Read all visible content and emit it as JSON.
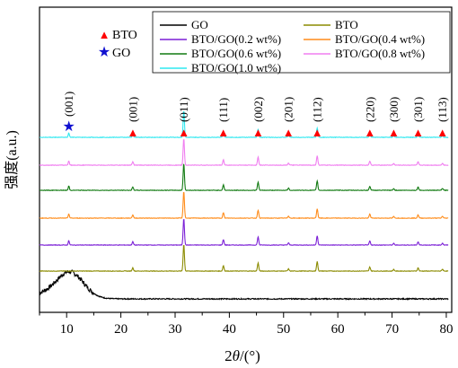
{
  "chart_data": {
    "type": "line",
    "xlabel": {
      "prefix": "2",
      "italic": "θ",
      "suffix": "/(°)"
    },
    "ylabel": "强度(a.u.)",
    "xlim": [
      5,
      81
    ],
    "xticks": [
      10,
      20,
      30,
      40,
      50,
      60,
      70,
      80
    ],
    "yticks_shown": false,
    "legend_position": "top-right",
    "legend_columns": 2,
    "series": [
      {
        "name": "GO",
        "color": "#000000",
        "kind": "go"
      },
      {
        "name": "BTO",
        "color": "#8b8b00",
        "kind": "bto"
      },
      {
        "name": "BTO/GO(0.2 wt%)",
        "color": "#7b1fd6",
        "kind": "bto"
      },
      {
        "name": "BTO/GO(0.4 wt%)",
        "color": "#ff8c1a",
        "kind": "bto"
      },
      {
        "name": "BTO/GO(0.6 wt%)",
        "color": "#117a11",
        "kind": "bto"
      },
      {
        "name": "BTO/GO(0.8 wt%)",
        "color": "#f07ef0",
        "kind": "bto"
      },
      {
        "name": "BTO/GO(1.0 wt%)",
        "color": "#2fe8f0",
        "kind": "bto"
      }
    ],
    "go_broad_peak": {
      "center": 10.5,
      "width": 3.6,
      "height": 0.55
    },
    "bto_peaks": [
      {
        "x": 22.2,
        "height": 0.12
      },
      {
        "x": 31.6,
        "height": 1.0
      },
      {
        "x": 38.9,
        "height": 0.2
      },
      {
        "x": 45.3,
        "height": 0.3
      },
      {
        "x": 50.9,
        "height": 0.08
      },
      {
        "x": 56.2,
        "height": 0.35
      },
      {
        "x": 65.9,
        "height": 0.15
      },
      {
        "x": 70.3,
        "height": 0.06
      },
      {
        "x": 74.8,
        "height": 0.12
      },
      {
        "x": 79.3,
        "height": 0.07
      }
    ],
    "go_small_peak_x": 10.4,
    "marker_key": [
      {
        "symbol": "▲",
        "label": "BTO",
        "color": "#ff0000"
      },
      {
        "symbol": "★",
        "label": "GO",
        "color": "#1010d0"
      }
    ],
    "peak_annotations": [
      {
        "x": 10.4,
        "label": "(001)",
        "symbol": "★"
      },
      {
        "x": 22.2,
        "label": "(001)",
        "symbol": "▲"
      },
      {
        "x": 31.6,
        "label": "(011)",
        "symbol": "▲"
      },
      {
        "x": 38.9,
        "label": "(111)",
        "symbol": "▲"
      },
      {
        "x": 45.3,
        "label": "(002)",
        "symbol": "▲"
      },
      {
        "x": 50.9,
        "label": "(201)",
        "symbol": "▲"
      },
      {
        "x": 56.2,
        "label": "(112)",
        "symbol": "▲"
      },
      {
        "x": 65.9,
        "label": "(220)",
        "symbol": "▲"
      },
      {
        "x": 70.3,
        "label": "(300)",
        "symbol": "▲"
      },
      {
        "x": 74.8,
        "label": "(301)",
        "symbol": "▲"
      },
      {
        "x": 79.3,
        "label": "(113)",
        "symbol": "▲"
      }
    ]
  }
}
